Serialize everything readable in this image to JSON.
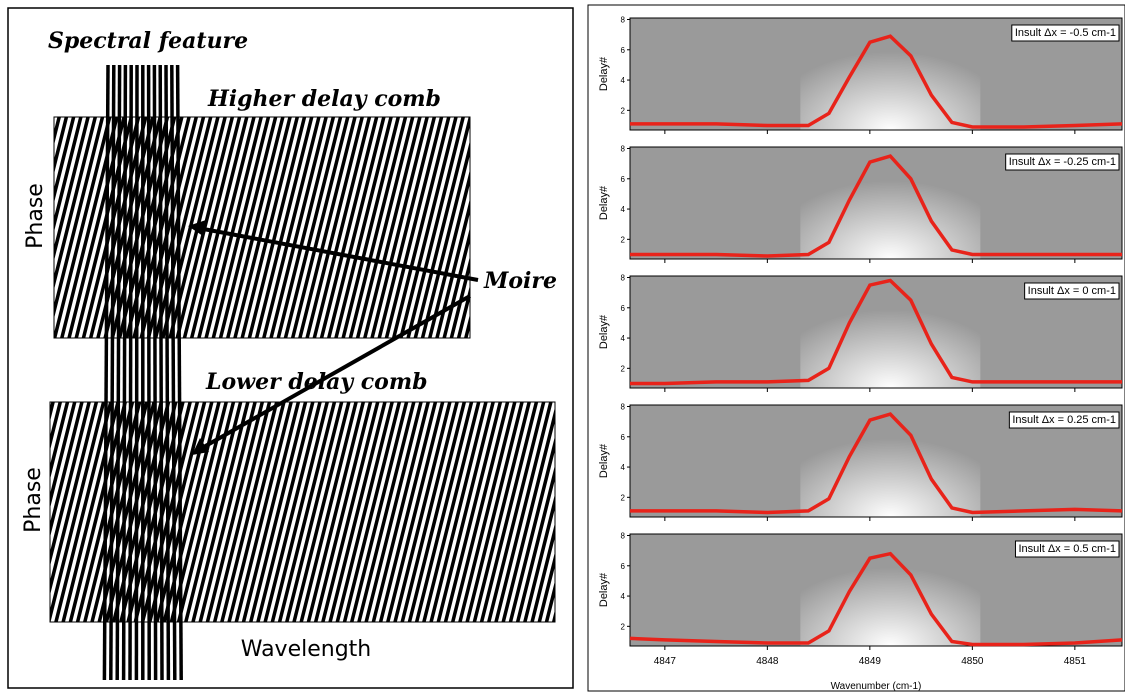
{
  "diagram": {
    "spectral_feature": "Spectral feature",
    "higher_comb": "Higher delay comb",
    "lower_comb": "Lower delay comb",
    "moire": "Moire",
    "phase_labels": [
      "Phase",
      "Phase"
    ],
    "wavelength": "Wavelength"
  },
  "plots": {
    "y_label": "Delay#",
    "x_label": "Wavenumber (cm-1)",
    "xlim": [
      4846.66,
      4851.46
    ],
    "ylim": [
      0.7,
      8.1
    ],
    "xticks": [
      4847,
      4848,
      4849,
      4850,
      4851
    ],
    "yticks": [
      2,
      4,
      6,
      8
    ],
    "curve_color": "#e8231a",
    "x": [
      4846.66,
      4847,
      4847.5,
      4848,
      4848.4,
      4848.6,
      4848.8,
      4849.0,
      4849.2,
      4849.4,
      4849.6,
      4849.8,
      4850.0,
      4850.5,
      4851,
      4851.46
    ],
    "panels": [
      {
        "label": "Insult Δx = -0.5 cm-1",
        "values": [
          1.1,
          1.1,
          1.1,
          1.0,
          1.0,
          1.8,
          4.2,
          6.5,
          6.9,
          5.6,
          3.0,
          1.2,
          0.9,
          0.9,
          1.0,
          1.1
        ]
      },
      {
        "label": "Insult Δx = -0.25 cm-1",
        "values": [
          1.0,
          1.0,
          1.0,
          0.9,
          1.0,
          1.8,
          4.6,
          7.1,
          7.5,
          6.0,
          3.2,
          1.3,
          1.0,
          1.0,
          1.0,
          1.0
        ]
      },
      {
        "label": "Insult Δx = 0 cm-1",
        "values": [
          1.0,
          1.0,
          1.1,
          1.1,
          1.2,
          2.0,
          5.0,
          7.5,
          7.8,
          6.5,
          3.6,
          1.4,
          1.1,
          1.1,
          1.1,
          1.1
        ]
      },
      {
        "label": "Insult Δx = 0.25 cm-1",
        "values": [
          1.1,
          1.1,
          1.1,
          1.0,
          1.1,
          1.9,
          4.7,
          7.1,
          7.5,
          6.1,
          3.2,
          1.3,
          1.0,
          1.1,
          1.2,
          1.1
        ]
      },
      {
        "label": "Insult Δx = 0.5 cm-1",
        "values": [
          1.2,
          1.1,
          1.0,
          0.9,
          0.9,
          1.7,
          4.3,
          6.5,
          6.8,
          5.4,
          2.8,
          1.0,
          0.8,
          0.8,
          0.9,
          1.1
        ]
      }
    ]
  }
}
